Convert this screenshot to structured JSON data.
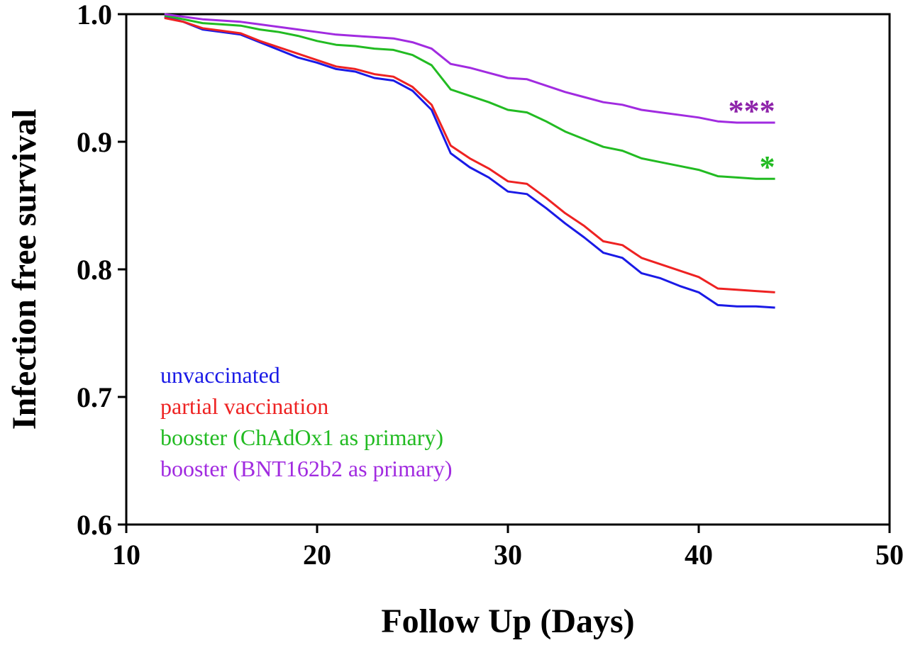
{
  "chart_data": {
    "type": "line",
    "title": "",
    "xlabel": "Follow Up (Days)",
    "ylabel": "Infection free survival",
    "xlim": [
      10,
      50
    ],
    "ylim": [
      0.6,
      1.0
    ],
    "xticks": [
      10,
      20,
      30,
      40,
      50
    ],
    "yticks": [
      0.6,
      0.7,
      0.8,
      0.9,
      1.0
    ],
    "xtick_labels": [
      "10",
      "20",
      "30",
      "40",
      "50"
    ],
    "ytick_labels": [
      "0.6",
      "0.7",
      "0.8",
      "0.9",
      "1.0"
    ],
    "grid": false,
    "legend_position": "bottom-left",
    "series": [
      {
        "name": "unvaccinated",
        "color": "#1a1ae6",
        "step": false,
        "x": [
          12,
          13,
          14,
          15,
          16,
          17,
          18,
          19,
          20,
          21,
          22,
          23,
          24,
          25,
          26,
          27,
          28,
          29,
          30,
          31,
          32,
          33,
          34,
          35,
          36,
          37,
          38,
          39,
          40,
          41,
          42,
          43,
          44
        ],
        "y": [
          0.998,
          0.994,
          0.988,
          0.986,
          0.984,
          0.978,
          0.972,
          0.966,
          0.962,
          0.957,
          0.955,
          0.95,
          0.948,
          0.94,
          0.925,
          0.891,
          0.88,
          0.872,
          0.861,
          0.859,
          0.848,
          0.836,
          0.825,
          0.813,
          0.809,
          0.797,
          0.793,
          0.787,
          0.782,
          0.772,
          0.771,
          0.771,
          0.77
        ]
      },
      {
        "name": "partial vaccination",
        "color": "#ee2222",
        "step": false,
        "x": [
          12,
          13,
          14,
          15,
          16,
          17,
          18,
          19,
          20,
          21,
          22,
          23,
          24,
          25,
          26,
          27,
          28,
          29,
          30,
          31,
          32,
          33,
          34,
          35,
          36,
          37,
          38,
          39,
          40,
          41,
          42,
          43,
          44
        ],
        "y": [
          0.997,
          0.994,
          0.989,
          0.987,
          0.985,
          0.979,
          0.974,
          0.969,
          0.964,
          0.959,
          0.957,
          0.953,
          0.951,
          0.943,
          0.929,
          0.897,
          0.887,
          0.879,
          0.869,
          0.867,
          0.856,
          0.844,
          0.834,
          0.822,
          0.819,
          0.809,
          0.804,
          0.799,
          0.794,
          0.785,
          0.784,
          0.783,
          0.782
        ]
      },
      {
        "name": "booster (ChAdOx1 as primary)",
        "color": "#22bb22",
        "step": false,
        "x": [
          12,
          13,
          14,
          15,
          16,
          17,
          18,
          19,
          20,
          21,
          22,
          23,
          24,
          25,
          26,
          27,
          28,
          29,
          30,
          31,
          32,
          33,
          34,
          35,
          36,
          37,
          38,
          39,
          40,
          41,
          42,
          43,
          44
        ],
        "y": [
          0.999,
          0.996,
          0.993,
          0.992,
          0.991,
          0.988,
          0.986,
          0.983,
          0.979,
          0.976,
          0.975,
          0.973,
          0.972,
          0.968,
          0.96,
          0.941,
          0.936,
          0.931,
          0.925,
          0.923,
          0.916,
          0.908,
          0.902,
          0.896,
          0.893,
          0.887,
          0.884,
          0.881,
          0.878,
          0.873,
          0.872,
          0.871,
          0.871
        ]
      },
      {
        "name": "booster (BNT162b2 as primary)",
        "color": "#a12be0",
        "step": false,
        "x": [
          12,
          13,
          14,
          15,
          16,
          17,
          18,
          19,
          20,
          21,
          22,
          23,
          24,
          25,
          26,
          27,
          28,
          29,
          30,
          31,
          32,
          33,
          34,
          35,
          36,
          37,
          38,
          39,
          40,
          41,
          42,
          43,
          44
        ],
        "y": [
          1.0,
          0.998,
          0.996,
          0.995,
          0.994,
          0.992,
          0.99,
          0.988,
          0.986,
          0.984,
          0.983,
          0.982,
          0.981,
          0.978,
          0.973,
          0.961,
          0.958,
          0.954,
          0.95,
          0.949,
          0.944,
          0.939,
          0.935,
          0.931,
          0.929,
          0.925,
          0.923,
          0.921,
          0.919,
          0.916,
          0.915,
          0.915,
          0.915
        ]
      }
    ],
    "annotations": [
      {
        "text": "***",
        "color": "#8e24aa",
        "series": "booster (BNT162b2 as primary)"
      },
      {
        "text": "*",
        "color": "#22bb22",
        "series": "booster (ChAdOx1 as primary)"
      }
    ],
    "legend": [
      {
        "label": "unvaccinated",
        "color": "#1a1ae6"
      },
      {
        "label": "partial vaccination",
        "color": "#ee2222"
      },
      {
        "label": "booster (ChAdOx1 as primary)",
        "color": "#22bb22"
      },
      {
        "label": "booster (BNT162b2 as primary)",
        "color": "#a12be0"
      }
    ]
  }
}
